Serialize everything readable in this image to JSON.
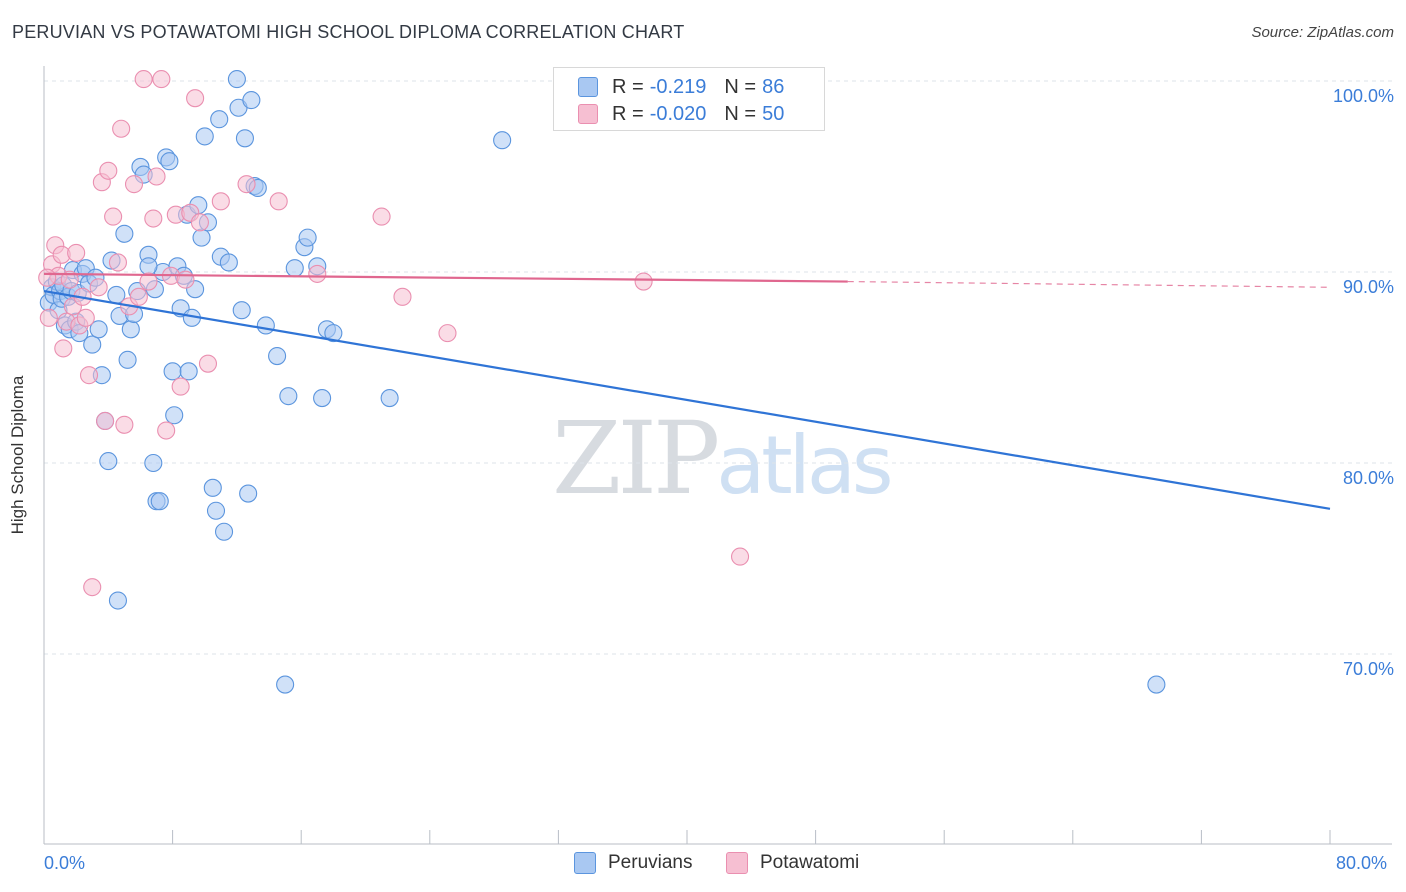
{
  "header": {
    "title": "PERUVIAN VS POTAWATOMI HIGH SCHOOL DIPLOMA CORRELATION CHART",
    "source": "Source: ZipAtlas.com"
  },
  "watermark": {
    "zip": "ZIP",
    "atlas": "atlas"
  },
  "legend": {
    "rows": [
      {
        "r_label": "R =",
        "r_value": "-0.219",
        "n_label": "N =",
        "n_value": "86"
      },
      {
        "r_label": "R =",
        "r_value": "-0.020",
        "n_label": "N =",
        "n_value": "50"
      }
    ]
  },
  "bottom_legend": {
    "peruvians": "Peruvians",
    "potawatomi": "Potawatomi"
  },
  "axes": {
    "x_min_label": "0.0%",
    "x_max_label": "80.0%",
    "y_ticks": [
      "100.0%",
      "90.0%",
      "80.0%",
      "70.0%"
    ]
  },
  "colors": {
    "blue_fill": "#a9c8f2",
    "blue_stroke": "#5b95de",
    "blue_line": "#2f74d6",
    "pink_fill": "#f6bfd2",
    "pink_stroke": "#ea8fb0",
    "pink_line": "#e0678f",
    "grid": "#dde3ea",
    "tick_text": "#3b7dd8"
  },
  "chart_data": {
    "type": "scatter",
    "title": "PERUVIAN VS POTAWATOMI HIGH SCHOOL DIPLOMA CORRELATION CHART",
    "xlabel": "",
    "ylabel": "High School Diploma",
    "xlim": [
      0,
      80
    ],
    "ylim": [
      61,
      101
    ],
    "grid": true,
    "legend": "top-center",
    "series": [
      {
        "name": "Peruvians",
        "R": -0.219,
        "N": 86,
        "trend": {
          "x": [
            0,
            80
          ],
          "y": [
            89.0,
            77.6
          ]
        },
        "points": [
          [
            0.3,
            88.4
          ],
          [
            0.5,
            89.2
          ],
          [
            0.6,
            88.8
          ],
          [
            0.8,
            89.5
          ],
          [
            0.9,
            88.0
          ],
          [
            1.0,
            89.0
          ],
          [
            1.1,
            88.6
          ],
          [
            1.2,
            89.3
          ],
          [
            1.3,
            87.2
          ],
          [
            1.5,
            88.7
          ],
          [
            1.6,
            87.0
          ],
          [
            1.7,
            89.0
          ],
          [
            1.8,
            90.1
          ],
          [
            2.0,
            87.4
          ],
          [
            2.1,
            88.9
          ],
          [
            2.2,
            86.8
          ],
          [
            2.4,
            89.9
          ],
          [
            2.6,
            90.2
          ],
          [
            2.8,
            89.4
          ],
          [
            3.0,
            86.2
          ],
          [
            3.2,
            89.7
          ],
          [
            3.4,
            87.0
          ],
          [
            3.6,
            84.6
          ],
          [
            3.8,
            82.2
          ],
          [
            4.0,
            80.1
          ],
          [
            4.2,
            90.6
          ],
          [
            4.5,
            88.8
          ],
          [
            4.7,
            87.7
          ],
          [
            5.0,
            92.0
          ],
          [
            5.2,
            85.4
          ],
          [
            5.4,
            87.0
          ],
          [
            5.6,
            87.8
          ],
          [
            5.8,
            89.0
          ],
          [
            6.0,
            95.5
          ],
          [
            6.2,
            95.1
          ],
          [
            6.5,
            90.9
          ],
          [
            6.8,
            80.0
          ],
          [
            6.9,
            89.1
          ],
          [
            7.0,
            78.0
          ],
          [
            7.2,
            78.0
          ],
          [
            7.4,
            90.0
          ],
          [
            7.6,
            96.0
          ],
          [
            7.8,
            95.8
          ],
          [
            8.0,
            84.8
          ],
          [
            8.1,
            82.5
          ],
          [
            8.3,
            90.3
          ],
          [
            8.5,
            88.1
          ],
          [
            8.7,
            89.8
          ],
          [
            8.9,
            93.0
          ],
          [
            9.0,
            84.8
          ],
          [
            9.2,
            87.6
          ],
          [
            9.4,
            89.1
          ],
          [
            9.6,
            93.5
          ],
          [
            9.8,
            91.8
          ],
          [
            10.0,
            97.1
          ],
          [
            10.2,
            92.6
          ],
          [
            10.5,
            78.7
          ],
          [
            10.7,
            77.5
          ],
          [
            10.9,
            98.0
          ],
          [
            11.0,
            90.8
          ],
          [
            11.2,
            76.4
          ],
          [
            11.5,
            90.5
          ],
          [
            12.0,
            100.1
          ],
          [
            12.1,
            98.6
          ],
          [
            12.3,
            88.0
          ],
          [
            12.5,
            97.0
          ],
          [
            12.7,
            78.4
          ],
          [
            12.9,
            99.0
          ],
          [
            13.1,
            94.5
          ],
          [
            13.3,
            94.4
          ],
          [
            13.8,
            87.2
          ],
          [
            14.5,
            85.6
          ],
          [
            15.0,
            68.4
          ],
          [
            15.2,
            83.5
          ],
          [
            15.6,
            90.2
          ],
          [
            16.2,
            91.3
          ],
          [
            16.4,
            91.8
          ],
          [
            17.0,
            90.3
          ],
          [
            17.3,
            83.4
          ],
          [
            17.6,
            87.0
          ],
          [
            18.0,
            86.8
          ],
          [
            21.5,
            83.4
          ],
          [
            28.5,
            96.9
          ],
          [
            4.6,
            72.8
          ],
          [
            69.2,
            68.4
          ],
          [
            6.5,
            90.3
          ]
        ]
      },
      {
        "name": "Potawatomi",
        "R": -0.02,
        "N": 50,
        "trend": {
          "x": [
            0,
            50
          ],
          "y": [
            89.9,
            89.5
          ],
          "dashed_to": [
            80,
            89.2
          ]
        },
        "points": [
          [
            0.3,
            87.6
          ],
          [
            0.5,
            90.4
          ],
          [
            0.7,
            91.4
          ],
          [
            0.9,
            89.8
          ],
          [
            1.1,
            90.9
          ],
          [
            1.2,
            86.0
          ],
          [
            1.4,
            87.4
          ],
          [
            1.6,
            89.6
          ],
          [
            1.8,
            88.2
          ],
          [
            2.0,
            91.0
          ],
          [
            2.2,
            87.2
          ],
          [
            2.4,
            88.7
          ],
          [
            2.6,
            87.6
          ],
          [
            2.8,
            84.6
          ],
          [
            3.0,
            73.5
          ],
          [
            3.4,
            89.2
          ],
          [
            3.6,
            94.7
          ],
          [
            3.8,
            82.2
          ],
          [
            4.0,
            95.3
          ],
          [
            4.3,
            92.9
          ],
          [
            4.6,
            90.5
          ],
          [
            4.8,
            97.5
          ],
          [
            5.0,
            82.0
          ],
          [
            5.3,
            88.2
          ],
          [
            5.6,
            94.6
          ],
          [
            5.9,
            88.7
          ],
          [
            6.2,
            100.1
          ],
          [
            6.5,
            89.5
          ],
          [
            6.8,
            92.8
          ],
          [
            7.0,
            95.0
          ],
          [
            7.3,
            100.1
          ],
          [
            7.6,
            81.7
          ],
          [
            7.9,
            89.8
          ],
          [
            8.2,
            93.0
          ],
          [
            8.5,
            84.0
          ],
          [
            8.8,
            89.6
          ],
          [
            9.1,
            93.1
          ],
          [
            9.4,
            99.1
          ],
          [
            9.7,
            92.6
          ],
          [
            10.2,
            85.2
          ],
          [
            11.0,
            93.7
          ],
          [
            12.6,
            94.6
          ],
          [
            14.6,
            93.7
          ],
          [
            17.0,
            89.9
          ],
          [
            21.0,
            92.9
          ],
          [
            22.3,
            88.7
          ],
          [
            25.1,
            86.8
          ],
          [
            37.3,
            89.5
          ],
          [
            43.3,
            75.1
          ],
          [
            0.2,
            89.7
          ]
        ]
      }
    ]
  }
}
